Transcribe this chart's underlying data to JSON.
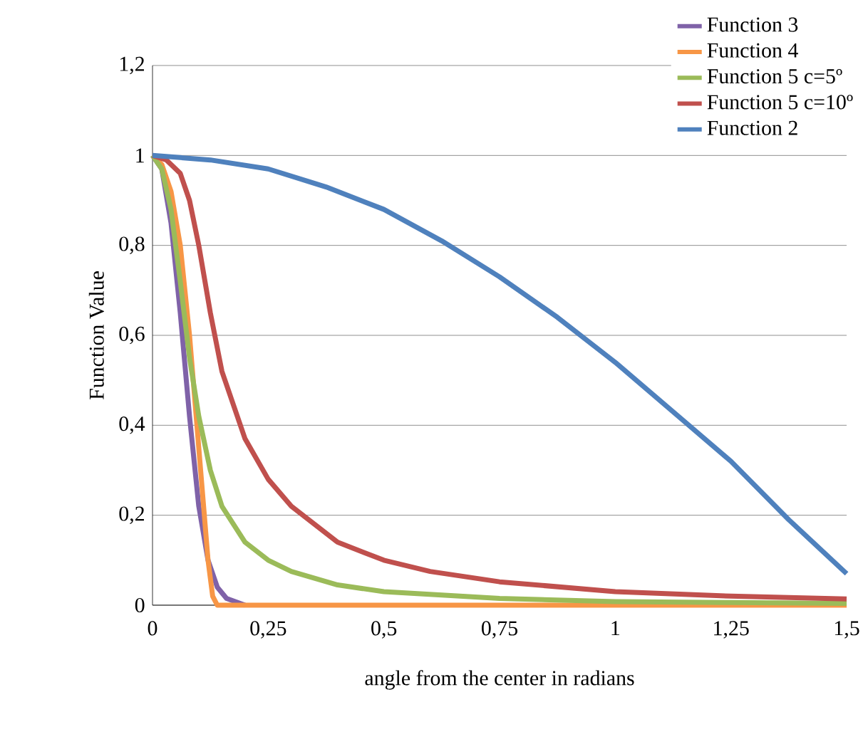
{
  "chart_data": {
    "type": "line",
    "xlabel": "angle from the center in radians",
    "ylabel": "Function  Value",
    "xlim": [
      0,
      1.5
    ],
    "ylim": [
      0,
      1.2
    ],
    "xticks": [
      0,
      {
        "value": 0.25,
        "label": "0,25"
      },
      {
        "value": 0.5,
        "label": "0,5"
      },
      {
        "value": 0.75,
        "label": "0,75"
      },
      1,
      {
        "value": 1.25,
        "label": "1,25"
      },
      {
        "value": 1.5,
        "label": "1,5"
      }
    ],
    "yticks": [
      0,
      {
        "value": 0.2,
        "label": "0,2"
      },
      {
        "value": 0.4,
        "label": "0,4"
      },
      {
        "value": 0.6,
        "label": "0,6"
      },
      {
        "value": 0.8,
        "label": "0,8"
      },
      1,
      {
        "value": 1.2,
        "label": "1,2"
      }
    ],
    "grid": "y",
    "legend": "top right",
    "marker": "none",
    "line_style": "solid",
    "series": [
      {
        "name": "Function 3",
        "color": "#7f62a8",
        "x": [
          0,
          0.02,
          0.04,
          0.06,
          0.08,
          0.1,
          0.12,
          0.14,
          0.16,
          0.2
        ],
        "values": [
          1,
          0.97,
          0.85,
          0.65,
          0.42,
          0.22,
          0.1,
          0.04,
          0.015,
          0
        ]
      },
      {
        "name": "Function 4",
        "color": "#f79646",
        "x": [
          0,
          0.02,
          0.04,
          0.06,
          0.08,
          0.1,
          0.12,
          0.13,
          0.14,
          0.5,
          1.0,
          1.5
        ],
        "values": [
          1,
          0.98,
          0.92,
          0.8,
          0.6,
          0.35,
          0.1,
          0.02,
          0,
          0,
          0,
          0
        ]
      },
      {
        "name": "Function 5 c=5º",
        "color": "#9bbb59",
        "x": [
          0,
          0.02,
          0.04,
          0.06,
          0.08,
          0.1,
          0.125,
          0.15,
          0.2,
          0.25,
          0.3,
          0.4,
          0.5,
          0.75,
          1.0,
          1.25,
          1.5
        ],
        "values": [
          1,
          0.97,
          0.88,
          0.72,
          0.55,
          0.42,
          0.3,
          0.22,
          0.14,
          0.1,
          0.075,
          0.045,
          0.03,
          0.015,
          0.008,
          0.006,
          0.004
        ]
      },
      {
        "name": "Function 5 c=10º",
        "color": "#c0504d",
        "x": [
          0,
          0.03,
          0.06,
          0.08,
          0.1,
          0.125,
          0.15,
          0.2,
          0.25,
          0.3,
          0.4,
          0.5,
          0.6,
          0.75,
          1.0,
          1.25,
          1.5
        ],
        "values": [
          1,
          0.99,
          0.96,
          0.9,
          0.8,
          0.65,
          0.52,
          0.37,
          0.28,
          0.22,
          0.14,
          0.1,
          0.075,
          0.052,
          0.03,
          0.02,
          0.014
        ]
      },
      {
        "name": "Function 2",
        "color": "#4f81bd",
        "x": [
          0,
          0.125,
          0.25,
          0.375,
          0.5,
          0.625,
          0.75,
          0.875,
          1.0,
          1.125,
          1.25,
          1.375,
          1.5
        ],
        "values": [
          1,
          0.99,
          0.97,
          0.93,
          0.88,
          0.81,
          0.73,
          0.64,
          0.54,
          0.43,
          0.32,
          0.19,
          0.07
        ]
      }
    ]
  }
}
